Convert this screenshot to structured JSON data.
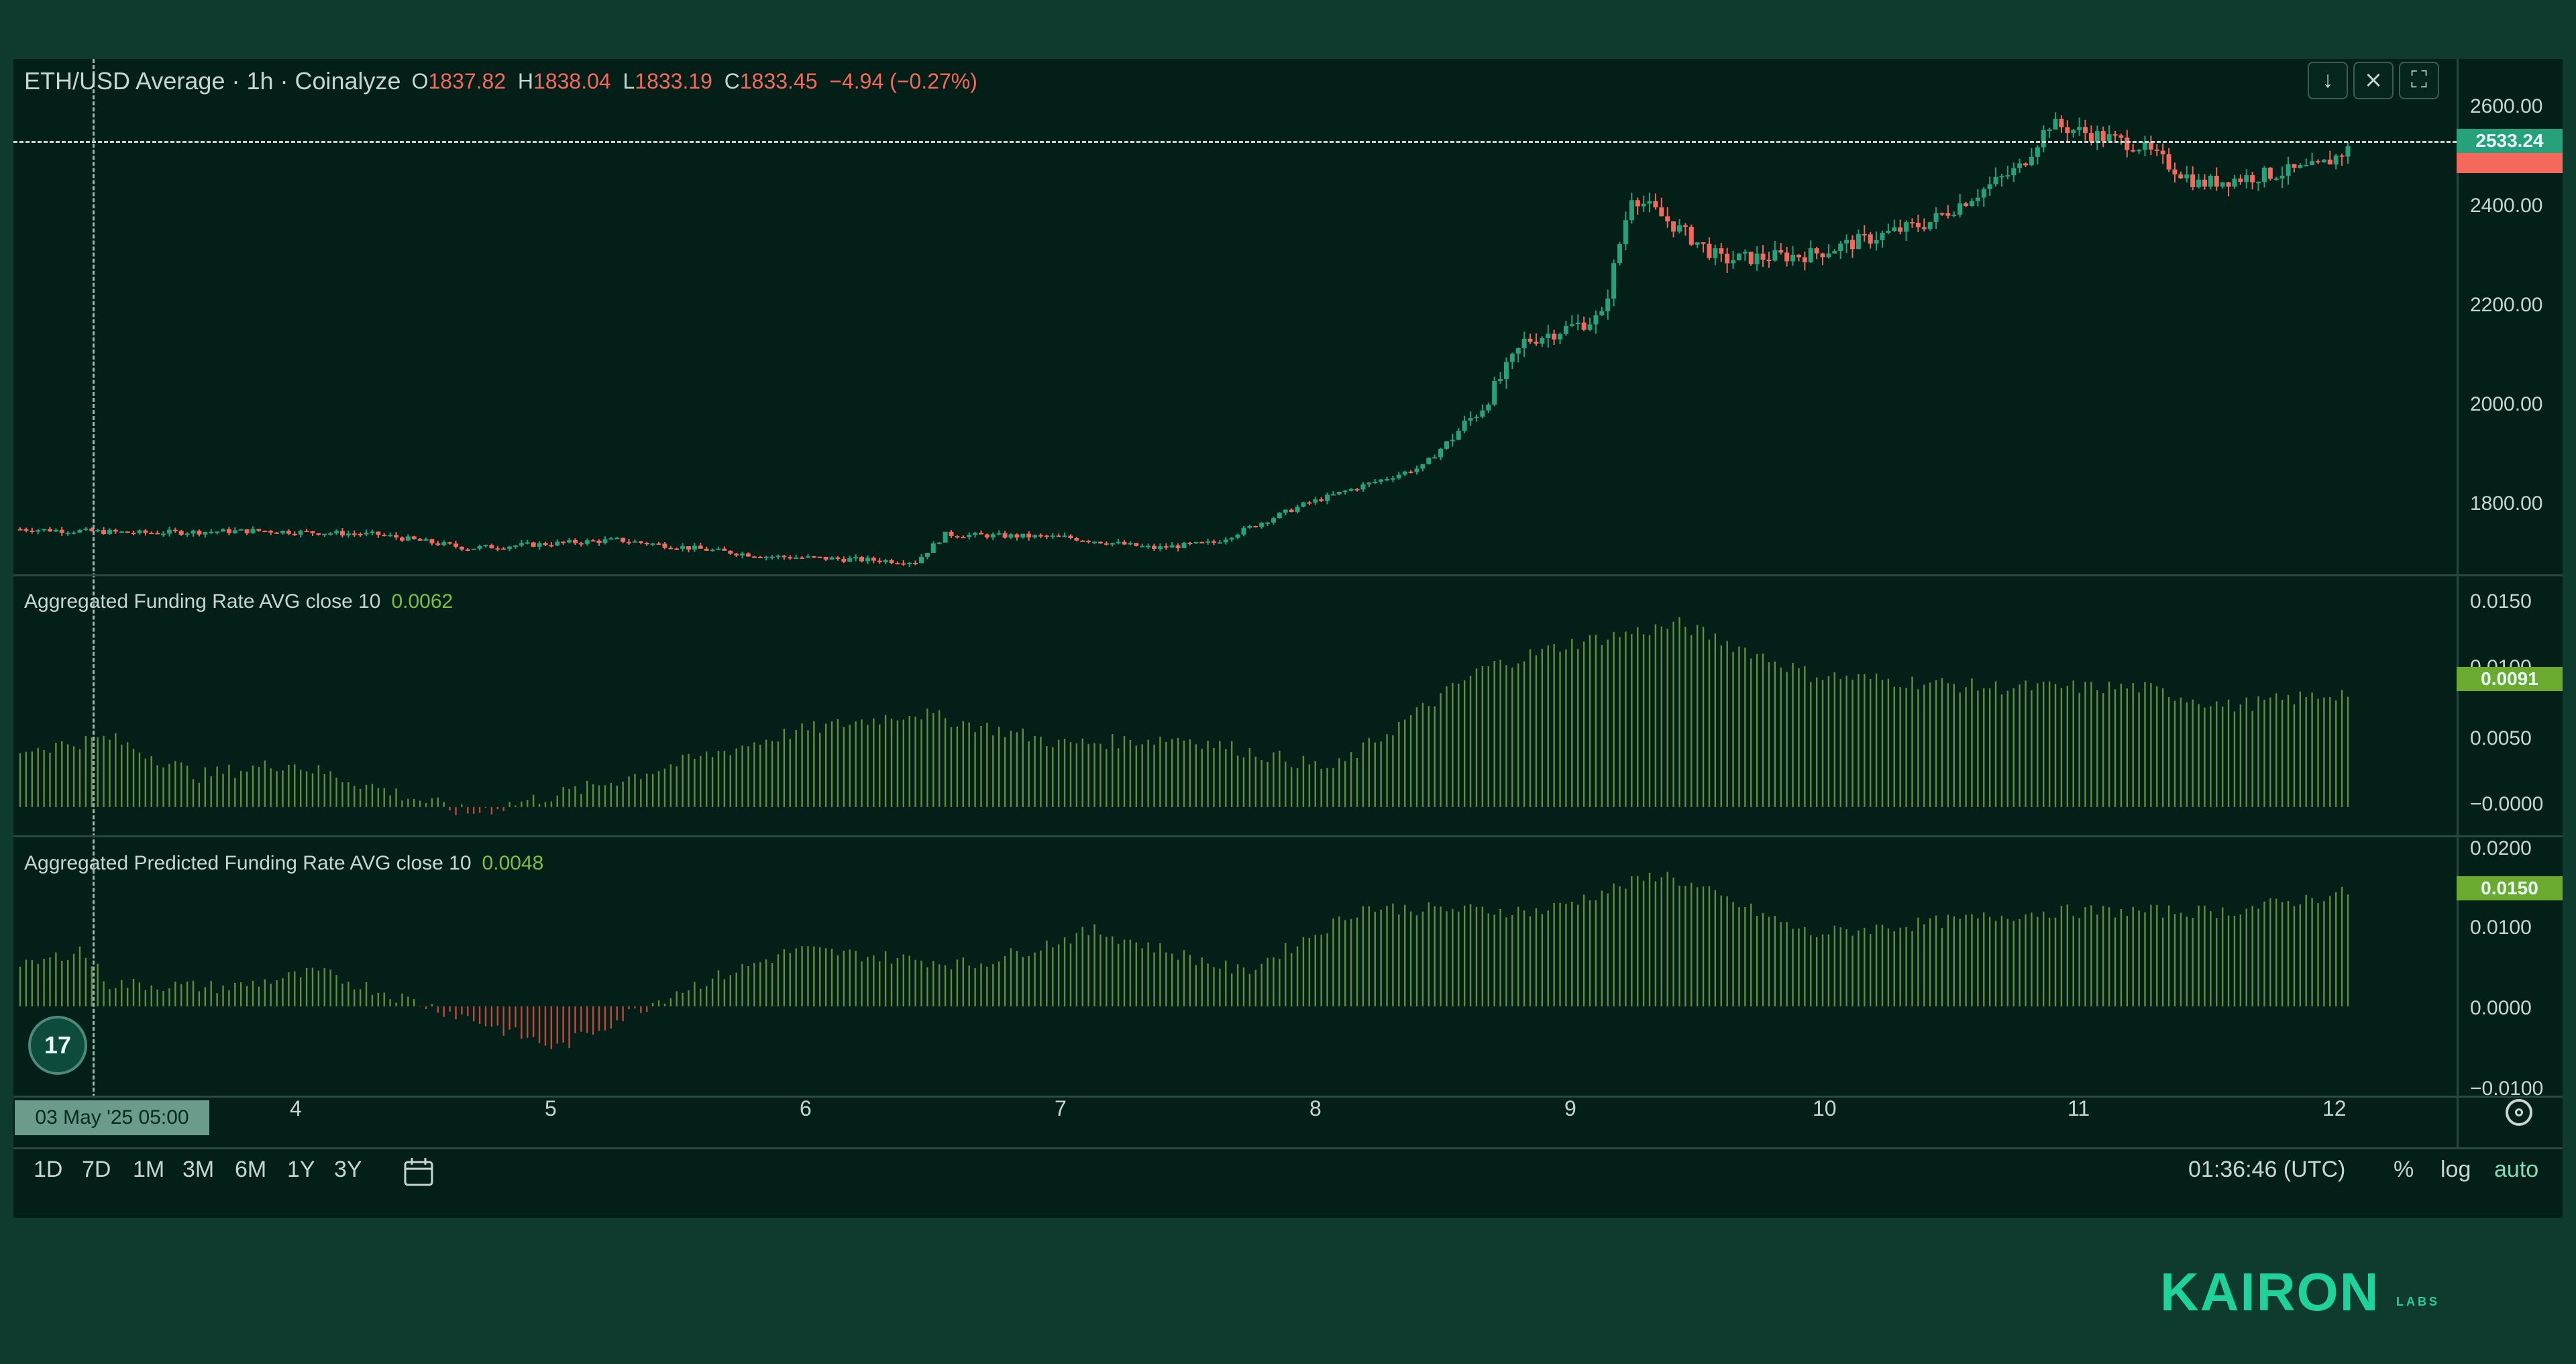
{
  "header": {
    "symbol": "ETH/USD Average · 1h · Coinalyze",
    "open_label": "O",
    "open": "1837.82",
    "high_label": "H",
    "high": "1838.04",
    "low_label": "L",
    "low": "1833.19",
    "close_label": "C",
    "close": "1833.45",
    "change": "−4.94 (−0.27%)"
  },
  "toolbar": {
    "download_icon": "arrow-down-icon",
    "collapse_icon": "collapse-icon",
    "fullscreen_icon": "fullscreen-icon"
  },
  "price_axis": {
    "ticks": [
      "2600.00",
      "2400.00",
      "2200.00",
      "2000.00",
      "1800.00"
    ],
    "current_price": "2533.24",
    "current_color": "#26a17b",
    "last_color": "#f4695c"
  },
  "funding": {
    "title": "Aggregated Funding Rate AVG close 10",
    "value": "0.0062",
    "ticks": [
      "0.0150",
      "0.0100",
      "0.0050",
      "−0.0000"
    ],
    "current": "0.0091"
  },
  "predicted": {
    "title": "Aggregated Predicted Funding Rate AVG close 10",
    "value": "0.0048",
    "ticks": [
      "0.0200",
      "0.0100",
      "0.0000",
      "−0.0100"
    ],
    "current": "0.0150"
  },
  "time_axis": {
    "crosshair_date": "03 May '25   05:00",
    "labels": [
      "4",
      "5",
      "6",
      "7",
      "8",
      "9",
      "10",
      "11",
      "12"
    ]
  },
  "ranges": [
    "1D",
    "7D",
    "1M",
    "3M",
    "6M",
    "1Y",
    "3Y"
  ],
  "footer": {
    "clock": "01:36:46 (UTC)",
    "percent": "%",
    "log": "log",
    "auto": "auto"
  },
  "brand": {
    "name": "KAIRON",
    "sub": "LABS"
  },
  "tv_logo": "17",
  "chart_data": {
    "type": "candlestick",
    "x_label_positions": [
      "May 3",
      "May 4",
      "May 5",
      "May 6",
      "May 7",
      "May 8",
      "May 9",
      "May 10",
      "May 11",
      "May 12"
    ],
    "price_keypoints": [
      {
        "t": 0,
        "price": 1835
      },
      {
        "t": 20,
        "price": 1828
      },
      {
        "t": 40,
        "price": 1832
      },
      {
        "t": 60,
        "price": 1825
      },
      {
        "t": 75,
        "price": 1800
      },
      {
        "t": 100,
        "price": 1815
      },
      {
        "t": 125,
        "price": 1785
      },
      {
        "t": 150,
        "price": 1775
      },
      {
        "t": 155,
        "price": 1825
      },
      {
        "t": 175,
        "price": 1820
      },
      {
        "t": 190,
        "price": 1800
      },
      {
        "t": 200,
        "price": 1810
      },
      {
        "t": 215,
        "price": 1880
      },
      {
        "t": 235,
        "price": 1950
      },
      {
        "t": 245,
        "price": 2060
      },
      {
        "t": 252,
        "price": 2180
      },
      {
        "t": 265,
        "price": 2225
      },
      {
        "t": 270,
        "price": 2450
      },
      {
        "t": 285,
        "price": 2330
      },
      {
        "t": 300,
        "price": 2340
      },
      {
        "t": 320,
        "price": 2400
      },
      {
        "t": 335,
        "price": 2500
      },
      {
        "t": 340,
        "price": 2580
      },
      {
        "t": 355,
        "price": 2540
      },
      {
        "t": 365,
        "price": 2470
      },
      {
        "t": 385,
        "price": 2500
      },
      {
        "t": 390,
        "price": 2533
      }
    ],
    "funding_keypoints": [
      {
        "t": 0,
        "v": 0.0045
      },
      {
        "t": 15,
        "v": 0.0055
      },
      {
        "t": 30,
        "v": 0.0025
      },
      {
        "t": 45,
        "v": 0.0035
      },
      {
        "t": 75,
        "v": -0.0005
      },
      {
        "t": 95,
        "v": 0.0015
      },
      {
        "t": 130,
        "v": 0.006
      },
      {
        "t": 150,
        "v": 0.0075
      },
      {
        "t": 175,
        "v": 0.005
      },
      {
        "t": 195,
        "v": 0.0055
      },
      {
        "t": 220,
        "v": 0.003
      },
      {
        "t": 245,
        "v": 0.011
      },
      {
        "t": 260,
        "v": 0.013
      },
      {
        "t": 278,
        "v": 0.0145
      },
      {
        "t": 300,
        "v": 0.0105
      },
      {
        "t": 330,
        "v": 0.0095
      },
      {
        "t": 355,
        "v": 0.0095
      },
      {
        "t": 370,
        "v": 0.008
      },
      {
        "t": 390,
        "v": 0.0091
      }
    ],
    "predicted_keypoints": [
      {
        "t": 0,
        "v": 0.005
      },
      {
        "t": 10,
        "v": 0.0075
      },
      {
        "t": 15,
        "v": 0.003
      },
      {
        "t": 35,
        "v": 0.0025
      },
      {
        "t": 50,
        "v": 0.0045
      },
      {
        "t": 75,
        "v": -0.0015
      },
      {
        "t": 90,
        "v": -0.0055
      },
      {
        "t": 110,
        "v": 0.002
      },
      {
        "t": 130,
        "v": 0.0075
      },
      {
        "t": 160,
        "v": 0.0055
      },
      {
        "t": 180,
        "v": 0.01
      },
      {
        "t": 205,
        "v": 0.0045
      },
      {
        "t": 225,
        "v": 0.013
      },
      {
        "t": 255,
        "v": 0.0125
      },
      {
        "t": 275,
        "v": 0.0175
      },
      {
        "t": 300,
        "v": 0.0095
      },
      {
        "t": 340,
        "v": 0.0125
      },
      {
        "t": 370,
        "v": 0.0125
      },
      {
        "t": 390,
        "v": 0.015
      }
    ],
    "price_ylim": [
      1700,
      2650
    ],
    "funding_ylim": [
      -0.0015,
      0.0175
    ],
    "predicted_ylim": [
      -0.0105,
      0.021
    ]
  }
}
